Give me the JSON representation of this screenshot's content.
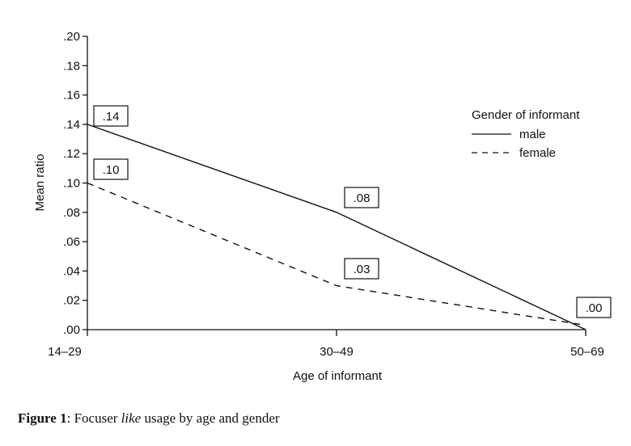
{
  "chart_data": {
    "type": "line",
    "xlabel": "Age of informant",
    "ylabel": "Mean ratio",
    "categories": [
      "14–29",
      "30–49",
      "50–69"
    ],
    "ylim": [
      0,
      0.2
    ],
    "yticks": [
      ".00",
      ".02",
      ".04",
      ".06",
      ".08",
      ".10",
      ".12",
      ".14",
      ".16",
      ".18",
      ".20"
    ],
    "grid": false,
    "legend": {
      "title": "Gender of informant",
      "placement": "top-right"
    },
    "series": [
      {
        "name": "male",
        "style": "solid",
        "values": [
          0.14,
          0.08,
          0.0
        ],
        "labels": [
          ".14",
          ".08",
          ""
        ]
      },
      {
        "name": "female",
        "style": "dashed",
        "values": [
          0.1,
          0.03,
          0.003
        ],
        "labels": [
          ".10",
          ".03",
          ".00"
        ]
      }
    ]
  },
  "caption": {
    "prefix": "Figure 1",
    "sep": ": Focuser ",
    "emph": "like",
    "rest": " usage by age and gender"
  }
}
